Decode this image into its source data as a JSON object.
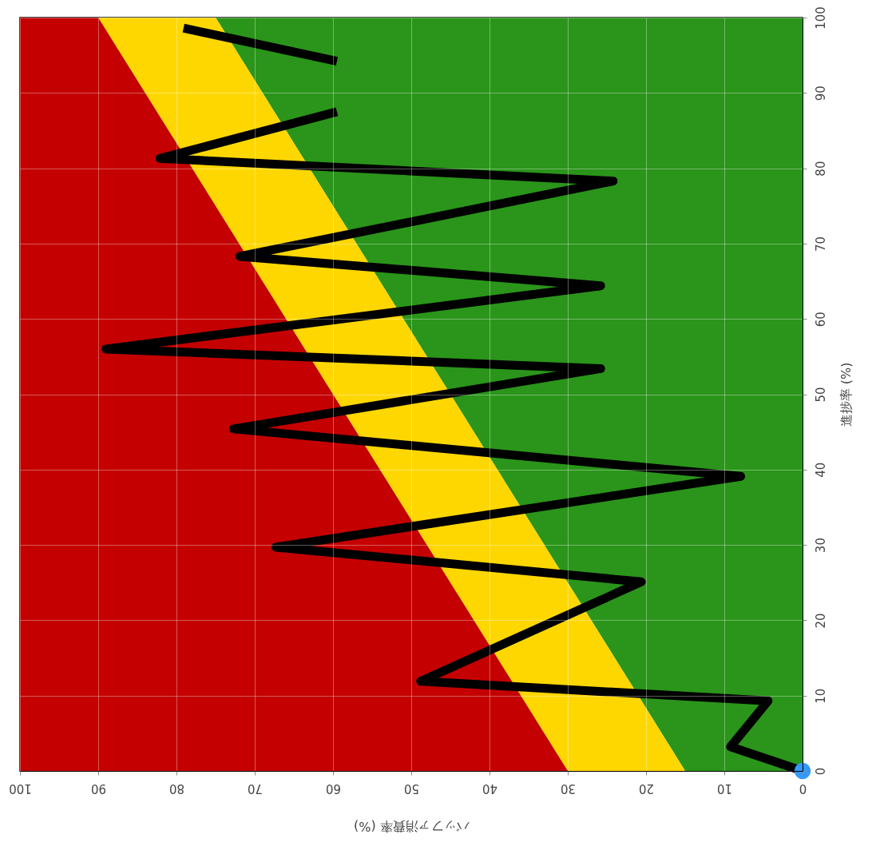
{
  "chart_data": {
    "type": "line",
    "orientation": "horizontal",
    "xlabel": "バッファ消費率 (%)",
    "ylabel": "進捗率 (%)",
    "xlim": [
      100,
      0
    ],
    "ylim": [
      0,
      100
    ],
    "xticks": [
      100,
      90,
      80,
      70,
      60,
      50,
      40,
      30,
      20,
      10,
      0
    ],
    "yticks": [
      0,
      10,
      20,
      30,
      40,
      50,
      60,
      70,
      80,
      90,
      100
    ],
    "grid": true,
    "legend": false,
    "stacked": true,
    "series": [
      {
        "type": "area",
        "color": "#2a951a",
        "x": [
          0,
          100
        ],
        "values": [
          15,
          75
        ]
      },
      {
        "type": "area",
        "color": "#ffd700",
        "x": [
          0,
          100
        ],
        "values": [
          15,
          15
        ]
      },
      {
        "type": "area",
        "color": "#c40000",
        "x": [
          0,
          100
        ],
        "values": [
          70,
          10
        ]
      },
      {
        "color": "#000000",
        "line_style": "solid",
        "marker": "none",
        "x": [
          0,
          3.2,
          9.3,
          11.9,
          25.1,
          29.7,
          39.1,
          45.4,
          53.4,
          56.0,
          64.4,
          68.3,
          78.3,
          81.3,
          87.5,
          90,
          94.2,
          98.6
        ],
        "values": [
          0,
          9.2,
          4.4,
          48.8,
          20.6,
          67.3,
          7.9,
          72.7,
          25.8,
          89.0,
          25.8,
          71.9,
          24.2,
          82.1,
          59.5,
          null,
          59.5,
          79.1
        ]
      },
      {
        "type": "scatter",
        "color": "#3399ff",
        "marker": "circle",
        "x": [
          0
        ],
        "values": [
          0
        ]
      }
    ]
  }
}
